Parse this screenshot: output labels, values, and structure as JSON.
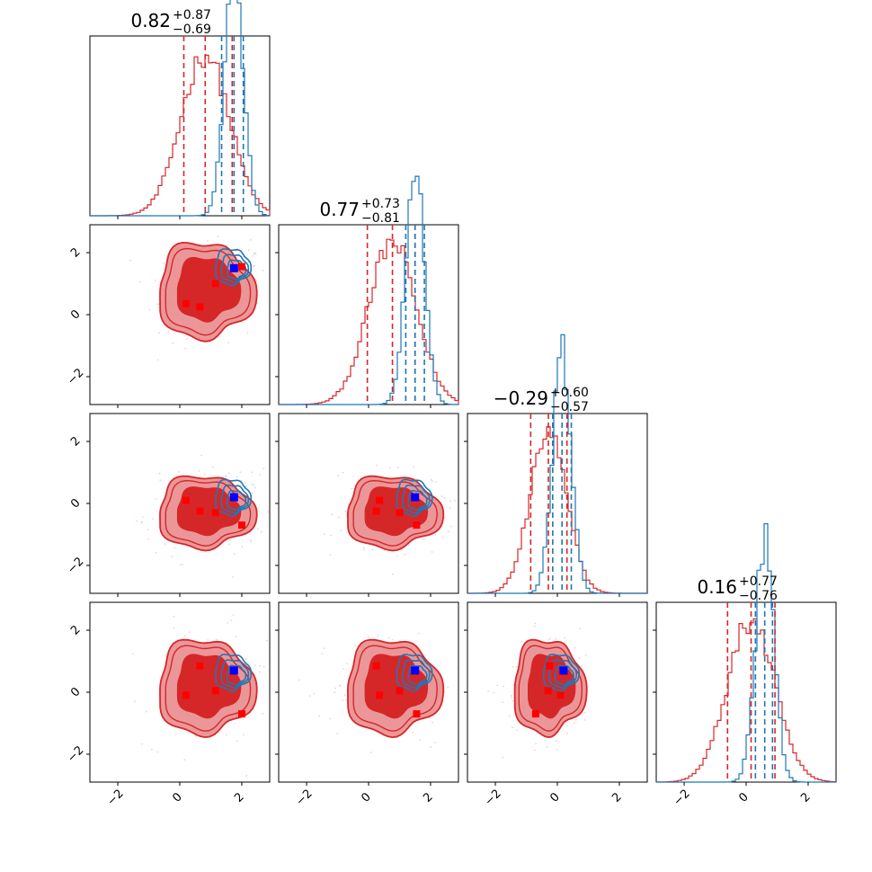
{
  "chart_data": {
    "type": "corner",
    "parameters": 4,
    "colors": {
      "primary": "#d62728",
      "secondary": "#1f77b4",
      "primary_fill": "#e88587",
      "marker_primary": "#ff0000",
      "marker_secondary": "#0000ff"
    },
    "axis_range": [
      -2.9,
      2.9
    ],
    "ticks": [
      -2,
      0,
      2
    ],
    "tick_labels": [
      "−2",
      "0",
      "2"
    ],
    "titles": [
      {
        "value": "0.82",
        "plus": "+0.87",
        "minus": "−0.69"
      },
      {
        "value": "0.77",
        "plus": "+0.73",
        "minus": "−0.81"
      },
      {
        "value": "−0.29",
        "plus": "+0.60",
        "minus": "−0.57"
      },
      {
        "value": "0.16",
        "plus": "+0.77",
        "minus": "−0.76"
      }
    ],
    "quantiles_primary": [
      [
        0.13,
        0.82,
        1.69
      ],
      [
        -0.04,
        0.77,
        1.5
      ],
      [
        -0.86,
        -0.29,
        0.31
      ],
      [
        -0.6,
        0.16,
        0.93
      ]
    ],
    "quantiles_secondary": [
      [
        1.35,
        1.75,
        2.05
      ],
      [
        1.2,
        1.5,
        1.8
      ],
      [
        -0.15,
        0.15,
        0.45
      ],
      [
        0.3,
        0.6,
        0.85
      ]
    ],
    "primary_means": [
      0.82,
      0.77,
      -0.29,
      0.16
    ],
    "primary_sds": [
      0.78,
      0.77,
      0.58,
      0.76
    ],
    "secondary_means": [
      1.75,
      1.5,
      0.15,
      0.6
    ],
    "secondary_sds": [
      0.3,
      0.3,
      0.3,
      0.3
    ],
    "true_point": [
      1.75,
      1.5,
      0.2,
      0.7
    ],
    "red_markers": [
      [
        0.2,
        0.35,
        0.1,
        -0.1
      ],
      [
        0.65,
        0.25,
        -0.25,
        0.85
      ],
      [
        1.15,
        1.0,
        -0.3,
        0.05
      ],
      [
        2.0,
        1.55,
        -0.7,
        -0.7
      ]
    ]
  }
}
